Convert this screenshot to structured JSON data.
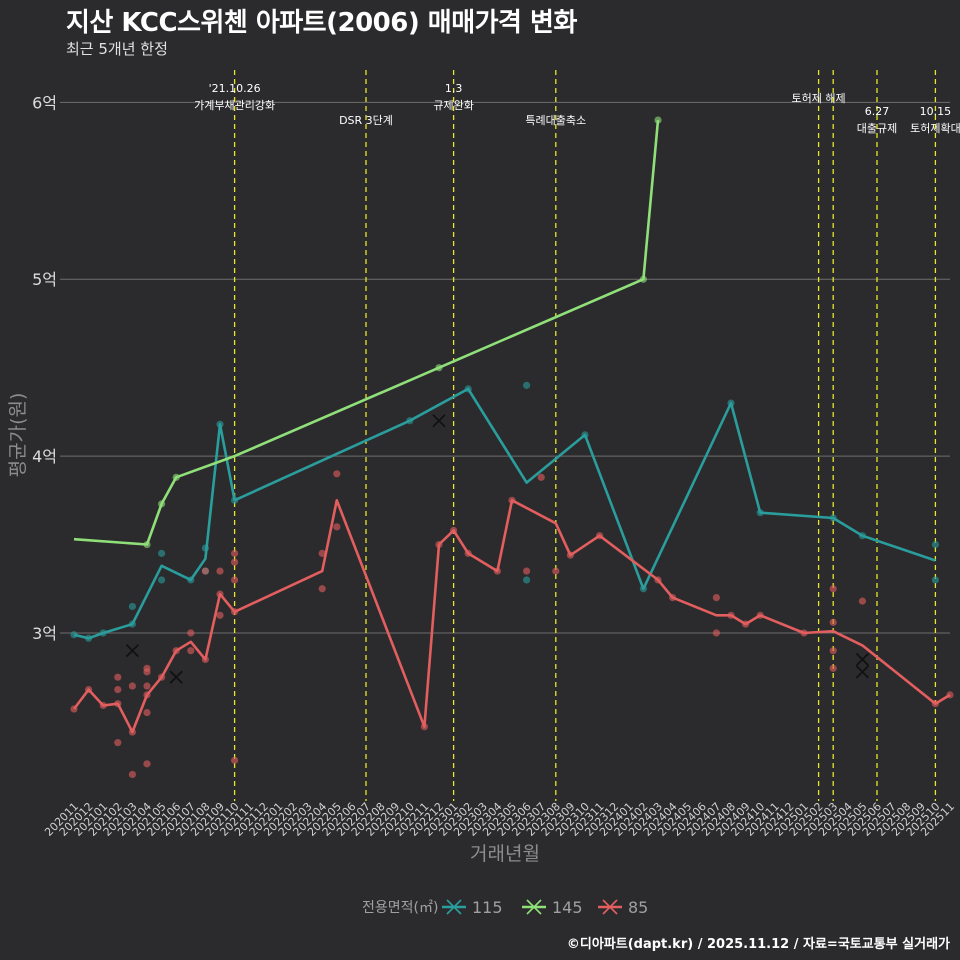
{
  "chart_data": {
    "type": "line",
    "title": "지산 KCC스위첸 아파트(2006) 매매가격 변화",
    "subtitle": "최근 5개년 한정",
    "xlabel": "거래년월",
    "ylabel": "평균가(원)",
    "caption": "©디아파트(dapt.kr) / 2025.11.12 / 자료=국토교통부 실거래가",
    "legend_title": "전용면적(㎡)",
    "legend_position": "bottom",
    "ylim": [
      2.05,
      6.2
    ],
    "yticks": [
      3,
      4,
      5,
      6
    ],
    "ytick_labels": [
      "3억",
      "4억",
      "5억",
      "6억"
    ],
    "categories": [
      "202011",
      "202012",
      "202101",
      "202102",
      "202103",
      "202104",
      "202105",
      "202106",
      "202107",
      "202108",
      "202109",
      "202110",
      "202111",
      "202112",
      "202201",
      "202202",
      "202203",
      "202204",
      "202205",
      "202206",
      "202207",
      "202208",
      "202209",
      "202210",
      "202211",
      "202212",
      "202301",
      "202302",
      "202303",
      "202304",
      "202305",
      "202306",
      "202307",
      "202308",
      "202309",
      "202310",
      "202311",
      "202312",
      "202401",
      "202402",
      "202403",
      "202404",
      "202405",
      "202406",
      "202407",
      "202408",
      "202409",
      "202410",
      "202411",
      "202412",
      "202501",
      "202502",
      "202503",
      "202504",
      "202505",
      "202506",
      "202507",
      "202508",
      "202509",
      "202510",
      "202511"
    ],
    "series": [
      {
        "name": "115",
        "color": "#2a9d9d",
        "line": [
          [
            "202011",
            2.99
          ],
          [
            "202012",
            2.97
          ],
          [
            "202101",
            3.0
          ],
          [
            "202103",
            3.05
          ],
          [
            "202105",
            3.38
          ],
          [
            "202107",
            3.3
          ],
          [
            "202108",
            3.42
          ],
          [
            "202109",
            4.18
          ],
          [
            "202110",
            3.75
          ],
          [
            "202210",
            4.2
          ],
          [
            "202302",
            4.38
          ],
          [
            "202306",
            3.85
          ],
          [
            "202310",
            4.12
          ],
          [
            "202402",
            3.25
          ],
          [
            "202408",
            4.3
          ],
          [
            "202410",
            3.68
          ],
          [
            "202503",
            3.65
          ],
          [
            "202505",
            3.55
          ],
          [
            "202510",
            3.41
          ]
        ],
        "points": [
          [
            "202011",
            2.99
          ],
          [
            "202012",
            2.97
          ],
          [
            "202101",
            3.0
          ],
          [
            "202103",
            3.05
          ],
          [
            "202103",
            3.15
          ],
          [
            "202105",
            3.3
          ],
          [
            "202105",
            3.45
          ],
          [
            "202107",
            3.3
          ],
          [
            "202108",
            3.35
          ],
          [
            "202108",
            3.48
          ],
          [
            "202109",
            4.18
          ],
          [
            "202110",
            3.75
          ],
          [
            "202210",
            4.2
          ],
          [
            "202302",
            4.38
          ],
          [
            "202306",
            4.4
          ],
          [
            "202306",
            3.3
          ],
          [
            "202310",
            4.12
          ],
          [
            "202402",
            3.25
          ],
          [
            "202408",
            4.3
          ],
          [
            "202410",
            3.68
          ],
          [
            "202503",
            3.65
          ],
          [
            "202505",
            3.55
          ],
          [
            "202510",
            3.5
          ],
          [
            "202510",
            3.3
          ]
        ],
        "x_marks": [
          [
            "202103",
            2.9
          ],
          [
            "202212",
            4.2
          ]
        ]
      },
      {
        "name": "145",
        "color": "#90e07a",
        "line": [
          [
            "202011",
            3.53
          ],
          [
            "202104",
            3.5
          ],
          [
            "202105",
            3.73
          ],
          [
            "202106",
            3.88
          ],
          [
            "202110",
            4.0
          ],
          [
            "202212",
            4.5
          ],
          [
            "202402",
            5.0
          ],
          [
            "202403",
            5.9
          ]
        ],
        "points": [
          [
            "202104",
            3.5
          ],
          [
            "202105",
            3.73
          ],
          [
            "202106",
            3.88
          ],
          [
            "202212",
            4.5
          ],
          [
            "202402",
            5.0
          ],
          [
            "202403",
            5.9
          ]
        ],
        "x_marks": []
      },
      {
        "name": "85",
        "color": "#e35e5e",
        "line": [
          [
            "202011",
            2.57
          ],
          [
            "202012",
            2.68
          ],
          [
            "202101",
            2.59
          ],
          [
            "202102",
            2.6
          ],
          [
            "202103",
            2.44
          ],
          [
            "202104",
            2.65
          ],
          [
            "202105",
            2.75
          ],
          [
            "202106",
            2.9
          ],
          [
            "202107",
            2.95
          ],
          [
            "202108",
            2.85
          ],
          [
            "202109",
            3.22
          ],
          [
            "202110",
            3.12
          ],
          [
            "202204",
            3.35
          ],
          [
            "202205",
            3.75
          ],
          [
            "202211",
            2.47
          ],
          [
            "202212",
            3.5
          ],
          [
            "202301",
            3.58
          ],
          [
            "202302",
            3.45
          ],
          [
            "202304",
            3.35
          ],
          [
            "202305",
            3.75
          ],
          [
            "202308",
            3.62
          ],
          [
            "202309",
            3.44
          ],
          [
            "202311",
            3.55
          ],
          [
            "202403",
            3.3
          ],
          [
            "202404",
            3.2
          ],
          [
            "202407",
            3.1
          ],
          [
            "202408",
            3.1
          ],
          [
            "202409",
            3.05
          ],
          [
            "202410",
            3.1
          ],
          [
            "202501",
            3.0
          ],
          [
            "202503",
            3.01
          ],
          [
            "202505",
            2.93
          ],
          [
            "202510",
            2.6
          ],
          [
            "202511",
            2.65
          ]
        ],
        "points": [
          [
            "202011",
            2.57
          ],
          [
            "202012",
            2.68
          ],
          [
            "202101",
            2.59
          ],
          [
            "202102",
            2.75
          ],
          [
            "202102",
            2.68
          ],
          [
            "202102",
            2.38
          ],
          [
            "202102",
            2.6
          ],
          [
            "202103",
            2.7
          ],
          [
            "202103",
            2.2
          ],
          [
            "202103",
            2.44
          ],
          [
            "202104",
            2.8
          ],
          [
            "202104",
            2.78
          ],
          [
            "202104",
            2.7
          ],
          [
            "202104",
            2.55
          ],
          [
            "202104",
            2.26
          ],
          [
            "202104",
            2.65
          ],
          [
            "202105",
            2.75
          ],
          [
            "202106",
            2.9
          ],
          [
            "202107",
            3.0
          ],
          [
            "202107",
            2.9
          ],
          [
            "202108",
            3.35
          ],
          [
            "202108",
            2.85
          ],
          [
            "202109",
            3.35
          ],
          [
            "202109",
            3.1
          ],
          [
            "202109",
            3.22
          ],
          [
            "202110",
            3.45
          ],
          [
            "202110",
            3.4
          ],
          [
            "202110",
            3.3
          ],
          [
            "202110",
            3.12
          ],
          [
            "202110",
            2.28
          ],
          [
            "202204",
            3.45
          ],
          [
            "202204",
            3.25
          ],
          [
            "202205",
            3.9
          ],
          [
            "202205",
            3.6
          ],
          [
            "202211",
            2.47
          ],
          [
            "202212",
            3.5
          ],
          [
            "202301",
            3.58
          ],
          [
            "202302",
            3.45
          ],
          [
            "202304",
            3.35
          ],
          [
            "202305",
            3.75
          ],
          [
            "202306",
            3.35
          ],
          [
            "202307",
            3.88
          ],
          [
            "202308",
            3.35
          ],
          [
            "202309",
            3.44
          ],
          [
            "202311",
            3.55
          ],
          [
            "202403",
            3.3
          ],
          [
            "202404",
            3.2
          ],
          [
            "202407",
            3.2
          ],
          [
            "202407",
            3.0
          ],
          [
            "202408",
            3.1
          ],
          [
            "202409",
            3.05
          ],
          [
            "202410",
            3.1
          ],
          [
            "202501",
            3.0
          ],
          [
            "202503",
            3.25
          ],
          [
            "202503",
            3.06
          ],
          [
            "202503",
            2.9
          ],
          [
            "202503",
            2.8
          ],
          [
            "202505",
            3.18
          ],
          [
            "202510",
            2.6
          ],
          [
            "202511",
            2.65
          ]
        ],
        "x_marks": [
          [
            "202106",
            2.75
          ],
          [
            "202505",
            2.85
          ],
          [
            "202505",
            2.78
          ]
        ]
      }
    ],
    "annotations": [
      {
        "x": "202110",
        "lines": [
          "'21.10.26",
          "가계부채관리강화"
        ],
        "row": 1
      },
      {
        "x": "202207",
        "lines": [
          "DSR 3단계"
        ],
        "row": 2
      },
      {
        "x": "202301",
        "lines": [
          "1.3",
          "규제완화"
        ],
        "row": 1
      },
      {
        "x": "202308",
        "lines": [
          "특례대출축소"
        ],
        "row": 2
      },
      {
        "x": "202502",
        "lines": [
          "토허제 해제"
        ],
        "row": 0
      },
      {
        "x": "202503",
        "lines": [],
        "row": 0
      },
      {
        "x": "202506",
        "lines": [
          "6.27",
          "대출규제"
        ],
        "row": 1
      },
      {
        "x": "202510",
        "lines": [
          "10.15",
          "토허제확대"
        ],
        "row": 1
      }
    ]
  }
}
